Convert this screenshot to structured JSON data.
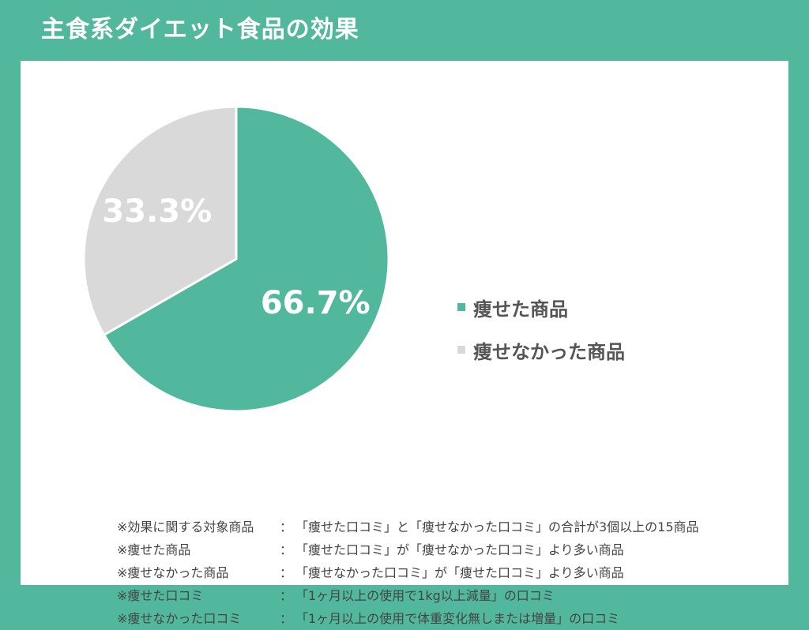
{
  "title": "主食系ダイエット食品の効果",
  "colors": {
    "background": "#52b89d",
    "slice_thin": "#52b89d",
    "slice_not_thin": "#d9d9d9",
    "panel": "#ffffff"
  },
  "chart_data": {
    "type": "pie",
    "title": "主食系ダイエット食品の効果",
    "slices": [
      {
        "label": "痩せた商品",
        "value": 66.7,
        "display": "66.7%",
        "color": "#52b89d"
      },
      {
        "label": "痩せなかった商品",
        "value": 33.3,
        "display": "33.3%",
        "color": "#d9d9d9"
      }
    ],
    "start_angle": "12 o'clock",
    "direction": "clockwise",
    "legend_position": "right"
  },
  "legend": [
    {
      "label": "痩せた商品",
      "color": "#52b89d"
    },
    {
      "label": "痩せなかった商品",
      "color": "#d9d9d9"
    }
  ],
  "notes": [
    {
      "term": "※効果に関する対象商品",
      "colon": "：",
      "desc": "「痩せた口コミ」と「痩せなかった口コミ」の合計が3個以上の15商品"
    },
    {
      "term": "※痩せた商品",
      "colon": "：",
      "desc": "「痩せた口コミ」が「痩せなかった口コミ」より多い商品"
    },
    {
      "term": "※痩せなかった商品",
      "colon": "：",
      "desc": "「痩せなかった口コミ」が「痩せた口コミ」より多い商品"
    },
    {
      "term": "※痩せた口コミ",
      "colon": "：",
      "desc": "「1ヶ月以上の使用で1kg以上減量」の口コミ"
    },
    {
      "term": "※痩せなかった口コミ",
      "colon": "：",
      "desc": "「1ヶ月以上の使用で体重変化無しまたは増量」の口コミ"
    }
  ]
}
